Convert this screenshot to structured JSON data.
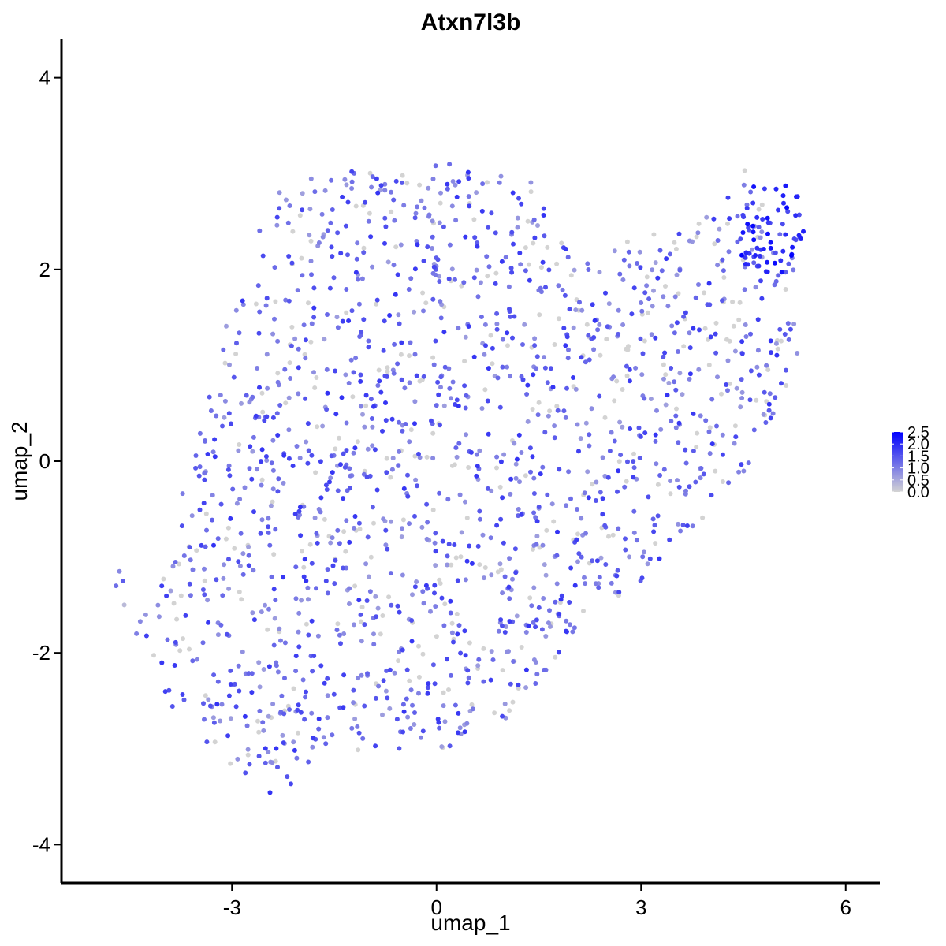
{
  "chart_data": {
    "type": "scatter",
    "title": "Atxn7l3b",
    "xlabel": "umap_1",
    "ylabel": "umap_2",
    "xlim": [
      -5.5,
      6.5
    ],
    "ylim": [
      -4.4,
      4.4
    ],
    "x_ticks": [
      -3,
      0,
      3,
      6
    ],
    "y_ticks": [
      -4,
      -2,
      0,
      2,
      4
    ],
    "x_tick_labels": [
      "-3",
      "0",
      "3",
      "6"
    ],
    "y_tick_labels": [
      "-4",
      "-2",
      "0",
      "2",
      "4"
    ],
    "grid": false,
    "color_scale": {
      "low_color": "#d3d3d3",
      "high_color": "#0000ff",
      "min": 0.0,
      "max": 2.5,
      "ticks": [
        0.0,
        0.5,
        1.0,
        1.5,
        2.0,
        2.5
      ],
      "tick_labels": [
        "0.0",
        "0.5",
        "1.0",
        "1.5",
        "2.0",
        "2.5"
      ]
    },
    "legend_position": "right",
    "n_points": 1700,
    "random_seed": 7,
    "cloud_polygon": [
      [
        -2.2,
        2.95
      ],
      [
        -1.0,
        3.05
      ],
      [
        0.2,
        3.1
      ],
      [
        1.4,
        2.95
      ],
      [
        1.6,
        2.6
      ],
      [
        2.0,
        2.1
      ],
      [
        2.8,
        2.3
      ],
      [
        3.8,
        2.5
      ],
      [
        4.5,
        3.05
      ],
      [
        5.0,
        2.6
      ],
      [
        5.35,
        2.3
      ],
      [
        5.3,
        1.5
      ],
      [
        5.3,
        0.9
      ],
      [
        4.8,
        0.3
      ],
      [
        4.4,
        -0.4
      ],
      [
        3.6,
        -0.8
      ],
      [
        3.0,
        -1.3
      ],
      [
        2.2,
        -1.6
      ],
      [
        1.5,
        -2.3
      ],
      [
        0.9,
        -2.8
      ],
      [
        0.2,
        -3.0
      ],
      [
        -0.8,
        -3.0
      ],
      [
        -1.6,
        -3.1
      ],
      [
        -2.4,
        -3.5
      ],
      [
        -3.2,
        -3.1
      ],
      [
        -4.2,
        -2.4
      ],
      [
        -4.4,
        -1.6
      ],
      [
        -4.0,
        -1.2
      ],
      [
        -3.7,
        -0.2
      ],
      [
        -3.3,
        0.8
      ],
      [
        -2.9,
        2.0
      ]
    ],
    "outlier_points": [
      {
        "x": -4.7,
        "y": -1.3,
        "v": 1.2
      },
      {
        "x": -4.65,
        "y": -1.15,
        "v": 0.9
      },
      {
        "x": -4.6,
        "y": -1.25,
        "v": 1.4
      },
      {
        "x": -4.58,
        "y": -1.5,
        "v": 0.3
      },
      {
        "x": -4.4,
        "y": -1.8,
        "v": 1.0
      }
    ],
    "high_cluster": {
      "cx": 4.9,
      "cy": 2.4,
      "rx": 0.55,
      "ry": 0.55,
      "n": 60
    },
    "gray_region": {
      "cx": 3.8,
      "cy": 1.6,
      "rx": 0.8,
      "ry": 0.5
    }
  }
}
